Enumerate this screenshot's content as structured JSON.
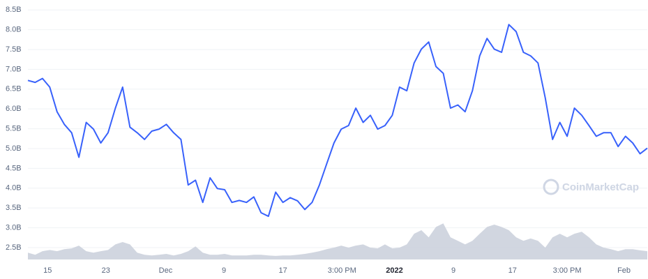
{
  "chart_data": {
    "type": "line",
    "watermark": "CoinMarketCap",
    "xlim": [
      0,
      85
    ],
    "xticks": [
      {
        "value": 2.7,
        "label": "15"
      },
      {
        "value": 10.7,
        "label": "23"
      },
      {
        "value": 18.9,
        "label": "Dec"
      },
      {
        "value": 26.9,
        "label": "9"
      },
      {
        "value": 35.0,
        "label": "17"
      },
      {
        "value": 43.1,
        "label": "3:00 PM"
      },
      {
        "value": 50.3,
        "label": "2022"
      },
      {
        "value": 58.4,
        "label": "9"
      },
      {
        "value": 66.5,
        "label": "17"
      },
      {
        "value": 74.0,
        "label": "3:00 PM"
      },
      {
        "value": 81.8,
        "label": "Feb"
      }
    ],
    "ylim": [
      2.2,
      8.75
    ],
    "yticks": [
      {
        "value": 2.5,
        "label": "2.5B"
      },
      {
        "value": 3.0,
        "label": "3.0B"
      },
      {
        "value": 3.5,
        "label": "3.5B"
      },
      {
        "value": 4.0,
        "label": "4.0B"
      },
      {
        "value": 4.5,
        "label": "4.5B"
      },
      {
        "value": 5.0,
        "label": "5.0B"
      },
      {
        "value": 5.5,
        "label": "5.5B"
      },
      {
        "value": 6.0,
        "label": "6.0B"
      },
      {
        "value": 6.5,
        "label": "6.5B"
      },
      {
        "value": 7.0,
        "label": "7.0B"
      },
      {
        "value": 7.5,
        "label": "7.5B"
      },
      {
        "value": 8.0,
        "label": "8.0B"
      },
      {
        "value": 8.5,
        "label": "8.5B"
      }
    ],
    "grid": true,
    "series": [
      {
        "color": "#3861fb",
        "values": [
          6.72,
          6.67,
          6.77,
          6.55,
          5.93,
          5.61,
          5.4,
          4.78,
          5.66,
          5.49,
          5.14,
          5.4,
          6.02,
          6.55,
          5.54,
          5.4,
          5.23,
          5.44,
          5.49,
          5.61,
          5.4,
          5.23,
          4.08,
          4.2,
          3.64,
          4.26,
          3.99,
          3.96,
          3.64,
          3.69,
          3.64,
          3.78,
          3.38,
          3.29,
          3.9,
          3.64,
          3.76,
          3.68,
          3.46,
          3.64,
          4.08,
          4.61,
          5.14,
          5.49,
          5.58,
          6.02,
          5.66,
          5.84,
          5.49,
          5.58,
          5.84,
          6.55,
          6.46,
          7.16,
          7.51,
          7.69,
          7.07,
          6.9,
          6.02,
          6.1,
          5.93,
          6.46,
          7.34,
          7.78,
          7.51,
          7.43,
          8.13,
          7.95,
          7.43,
          7.34,
          7.16,
          6.28,
          5.23,
          5.66,
          5.31,
          6.02,
          5.84,
          5.58,
          5.31,
          5.4,
          5.4,
          5.05,
          5.31,
          5.14,
          4.87,
          5.01
        ]
      },
      {
        "color": "#c9cfdb",
        "type": "area",
        "values": [
          2.37,
          2.32,
          2.41,
          2.44,
          2.41,
          2.46,
          2.48,
          2.55,
          2.41,
          2.37,
          2.41,
          2.44,
          2.58,
          2.64,
          2.58,
          2.37,
          2.32,
          2.3,
          2.32,
          2.34,
          2.3,
          2.34,
          2.41,
          2.53,
          2.37,
          2.32,
          2.32,
          2.34,
          2.3,
          2.3,
          2.3,
          2.32,
          2.32,
          2.3,
          2.29,
          2.3,
          2.3,
          2.32,
          2.34,
          2.37,
          2.41,
          2.46,
          2.5,
          2.55,
          2.5,
          2.55,
          2.58,
          2.5,
          2.48,
          2.58,
          2.48,
          2.5,
          2.58,
          2.85,
          2.94,
          2.76,
          3.02,
          3.11,
          2.76,
          2.67,
          2.58,
          2.67,
          2.85,
          3.02,
          3.08,
          3.02,
          2.94,
          2.76,
          2.67,
          2.73,
          2.67,
          2.5,
          2.76,
          2.85,
          2.76,
          2.85,
          2.9,
          2.76,
          2.58,
          2.5,
          2.46,
          2.41,
          2.46,
          2.46,
          2.43,
          2.41
        ]
      }
    ]
  }
}
